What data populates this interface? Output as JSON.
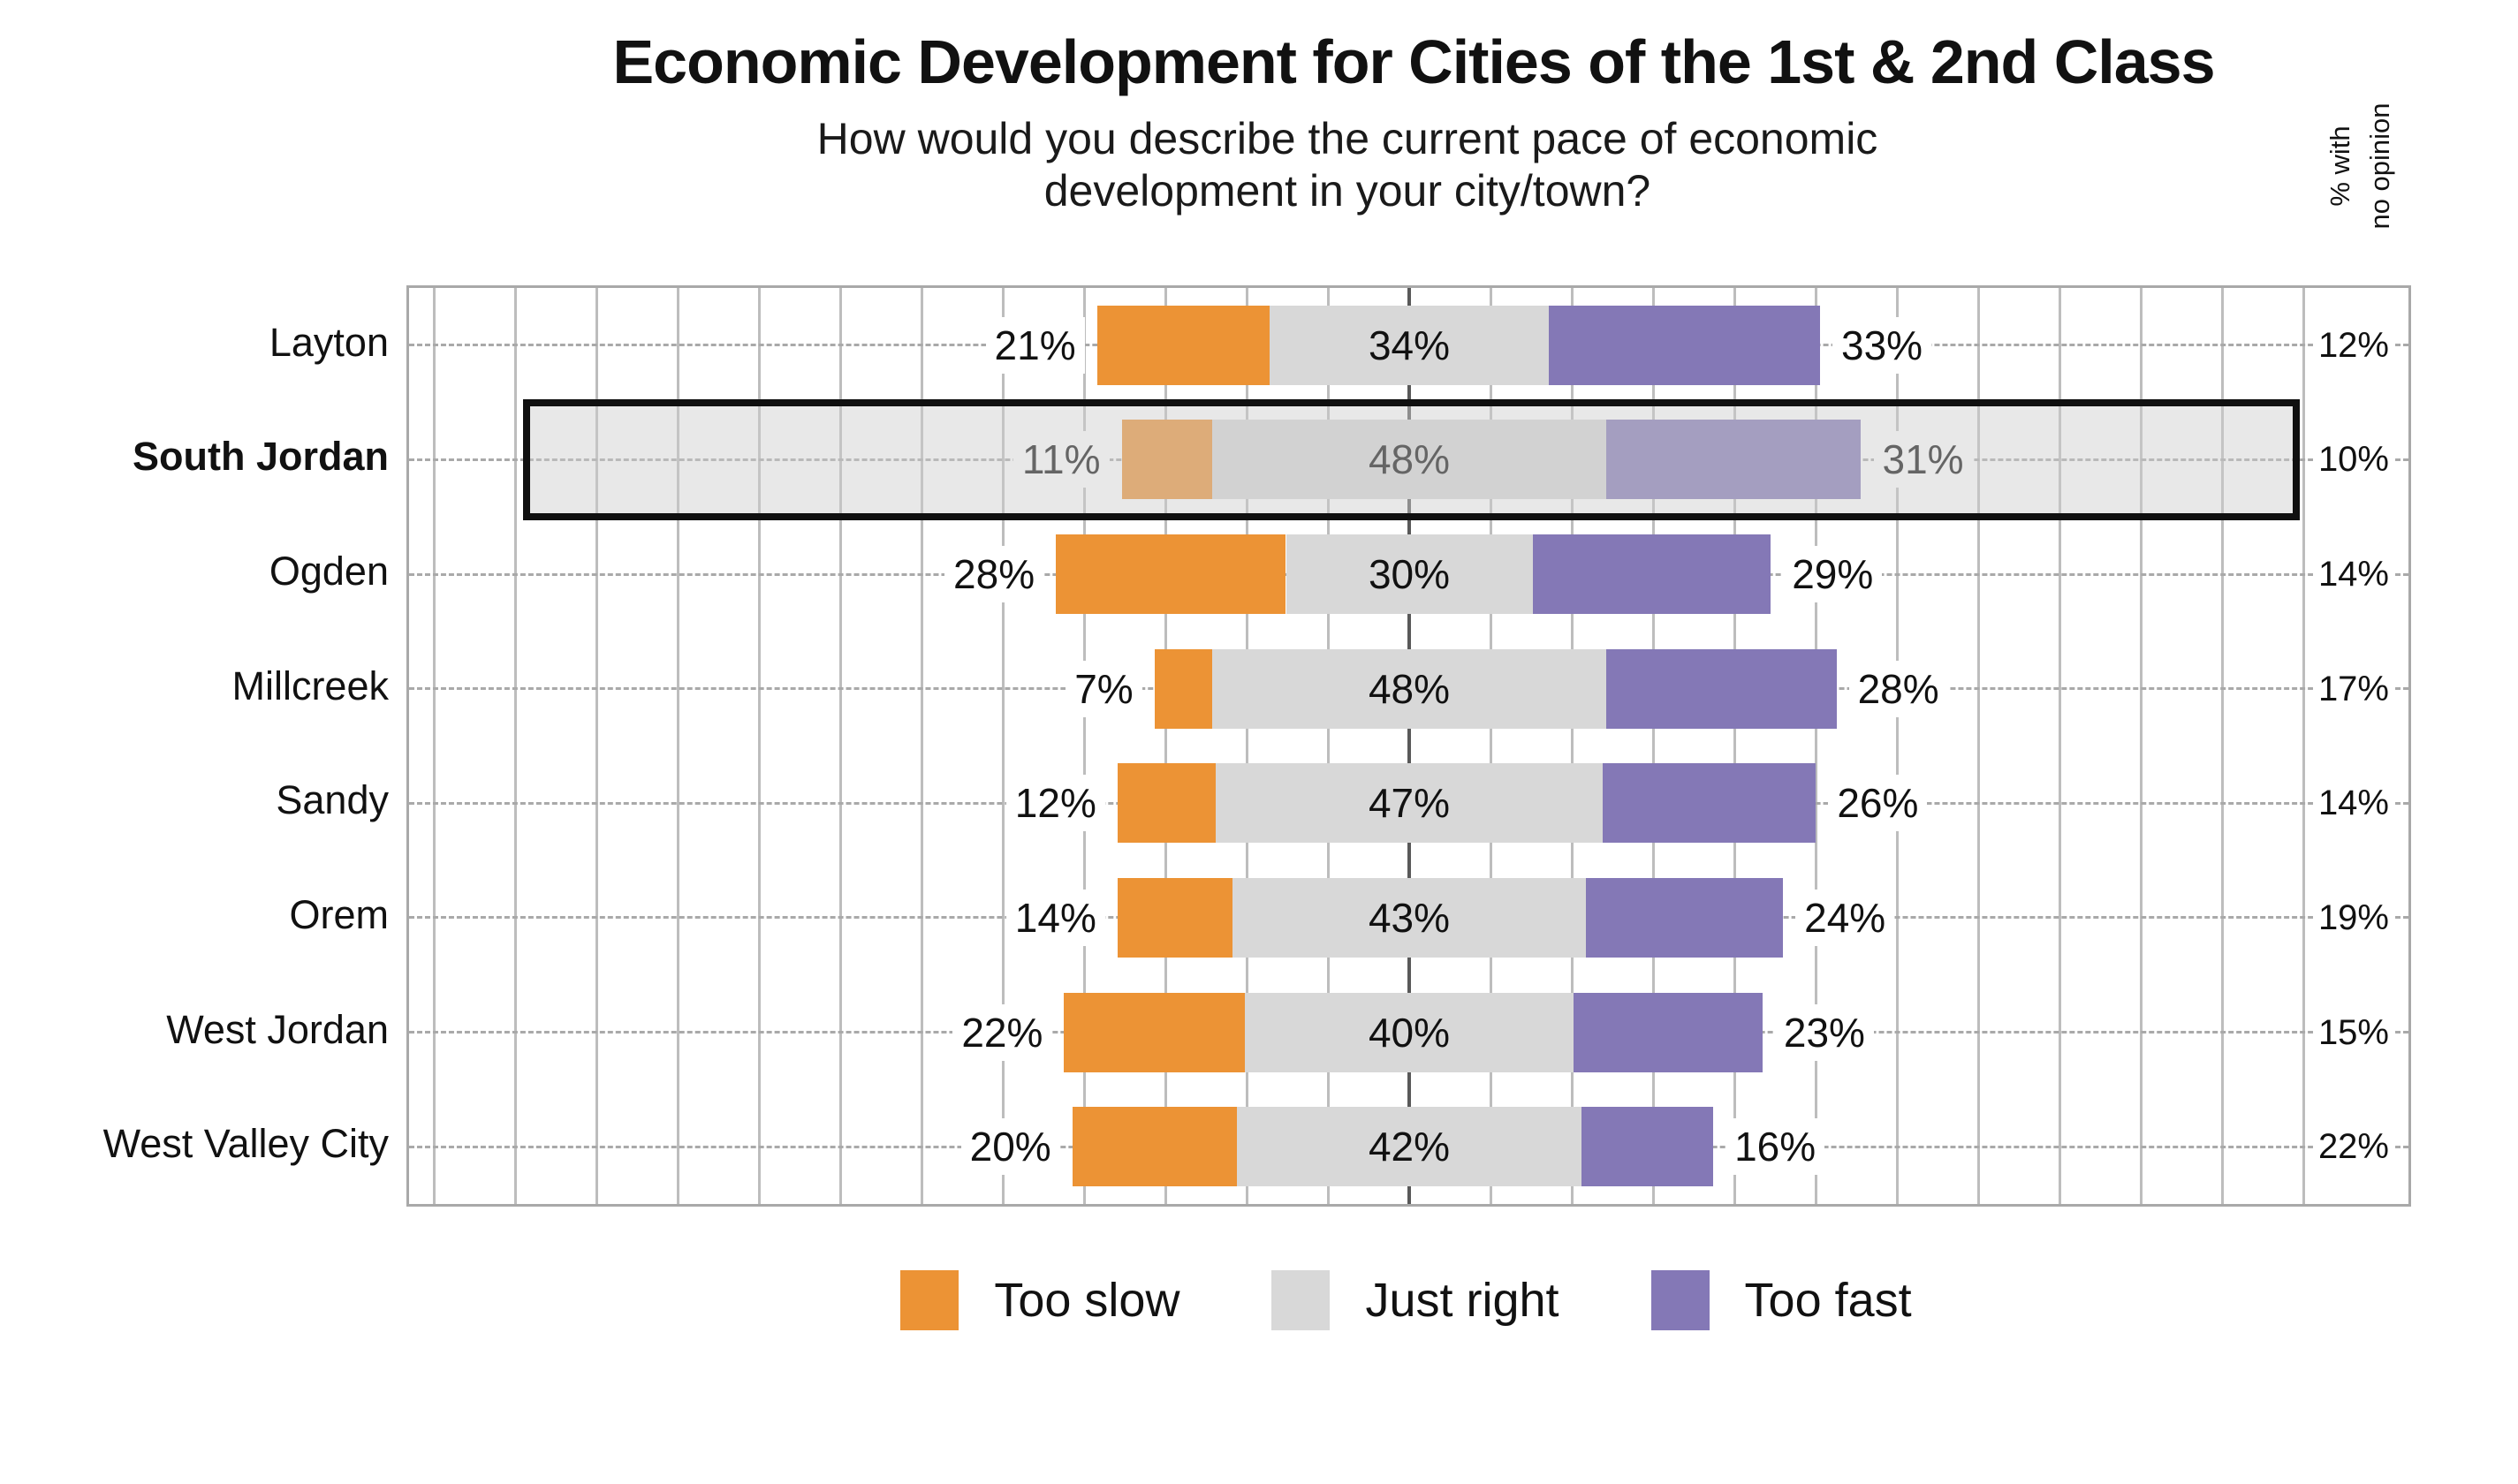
{
  "header": {
    "title": "Economic Development for Cities of the 1st & 2nd Class",
    "subtitle_line1": "How would you describe the current pace of economic",
    "subtitle_line2": "development in your city/town?",
    "no_opinion_header_line1": "% with",
    "no_opinion_header_line2": "no opinion"
  },
  "legend": {
    "items": [
      {
        "label": "Too slow",
        "color": "#EC9335"
      },
      {
        "label": "Just right",
        "color": "#D8D8D8"
      },
      {
        "label": "Too fast",
        "color": "#8478B6"
      }
    ]
  },
  "colors": {
    "too_slow": "#EC9335",
    "just_right": "#D8D8D8",
    "too_fast": "#8478B6",
    "highlight_border": "#101010",
    "gridline": "#BDBDBD",
    "center_line": "#595959"
  },
  "chart_data": {
    "type": "bar",
    "variant": "horizontal-diverging-stacked",
    "title": "Economic Development for Cities of the 1st & 2nd Class",
    "question": "How would you describe the current pace of economic development in your city/town?",
    "value_suffix": "%",
    "categories": [
      "Layton",
      "South Jordan",
      "Ogden",
      "Millcreek",
      "Sandy",
      "Orem",
      "West Jordan",
      "West Valley City"
    ],
    "series": [
      {
        "name": "Too slow",
        "color": "#EC9335",
        "values": [
          21,
          11,
          28,
          7,
          12,
          14,
          22,
          20
        ]
      },
      {
        "name": "Just right",
        "color": "#D8D8D8",
        "values": [
          34,
          48,
          30,
          48,
          47,
          43,
          40,
          42
        ]
      },
      {
        "name": "Too fast",
        "color": "#8478B6",
        "values": [
          33,
          31,
          29,
          28,
          26,
          24,
          23,
          16
        ]
      }
    ],
    "no_opinion": {
      "label": "% with no opinion",
      "values": [
        12,
        10,
        14,
        17,
        14,
        19,
        15,
        22
      ]
    },
    "highlighted_category": "South Jordan",
    "layout_hints": {
      "just_right_centered_on_axis": true,
      "gridlines": "vertical, every 10%",
      "row_guides": "dashed horizontal per category",
      "legend_position": "bottom-center"
    }
  }
}
